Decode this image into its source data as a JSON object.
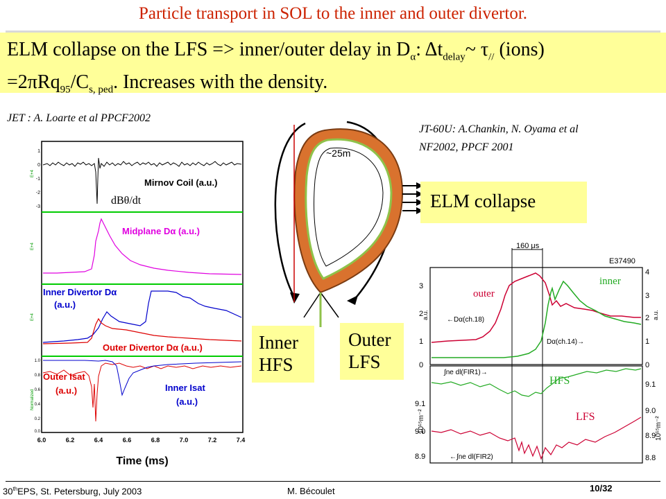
{
  "slide": {
    "title": "Particle transport in SOL to the inner and outer divertor.",
    "headline": {
      "line1_a": "ELM collapse on the LFS => inner/outer  delay in D",
      "line1_b": "α",
      "line1_c": ": Δt",
      "line1_d": "delay",
      "line1_e": "~  τ",
      "line1_f": "//",
      "line1_g": " (ions)",
      "line2_a": "=2πRq",
      "line2_b": "95",
      "line2_c": "/C",
      "line2_d": "s, ped",
      "line2_e": ". Increases with the density."
    }
  },
  "left_panel": {
    "citation": "JET : A. Loarte et al PPCF2002",
    "traces": {
      "mirnov": "Mirnov Coil (a.u.)",
      "dbdt": "dBθ/dt",
      "midplane": "Midplane Dα (a.u.)",
      "inner_div_1": "Inner Divertor Dα",
      "inner_div_2": "(a.u.)",
      "outer_div": "Outer Divertor Dα (a.u.)",
      "outer_isat_1": "Outer Isat",
      "outer_isat_2": "(a.u.)",
      "inner_isat_1": "Inner Isat",
      "inner_isat_2": "(a.u.)"
    },
    "y_axis_small": [
      "E+4",
      "E+4",
      "E+4",
      "Normalized"
    ],
    "mirnov_ticks": [
      "1",
      "0",
      "-1",
      "-2",
      "-3"
    ],
    "isat_ticks": [
      "1.0",
      "0.8",
      "0.6",
      "0.4",
      "0.2",
      "0.0"
    ],
    "x_ticks": [
      "6.0",
      "6.2",
      "6.4",
      "6.6",
      "6.8",
      "7.0",
      "7.2",
      "7.4"
    ],
    "x_label": "Time (ms)"
  },
  "diagram": {
    "label": "~25m"
  },
  "boxes": {
    "elm_collapse": "ELM collapse",
    "inner_hfs_1": "Inner",
    "inner_hfs_2": "HFS",
    "outer_lfs_1": "Outer",
    "outer_lfs_2": "LFS"
  },
  "right_panel": {
    "citation_1": "JT-60U: A.Chankin, N. Oyama et al",
    "citation_2": "NF2002, PPCF 2001",
    "shot": "E37490",
    "time_window": "160 μs",
    "label_outer": "outer",
    "label_inner": "inner",
    "label_hfs": "HFS",
    "label_lfs": "LFS",
    "label_dalpha18": "←Dα(ch.18)",
    "label_dalpha14": "Dα(ch.14)→",
    "label_fir1": "∫ne dl(FIR1)→",
    "label_fir2": "←∫ne dl(FIR2)",
    "top_ticks_left": [
      "3",
      "2",
      "1",
      "0"
    ],
    "top_ticks_right": [
      "4",
      "3",
      "2",
      "1",
      "0"
    ],
    "top_unit": "a.u.",
    "bot_ticks_left": [
      "9.1",
      "9.0",
      "8.9"
    ],
    "bot_ticks_right": [
      "9.1",
      "9.0",
      "8.9",
      "8.8"
    ],
    "bot_unit": "10¹⁵m⁻²"
  },
  "footer": {
    "conf_a": "30",
    "conf_b": "th",
    "conf_c": "EPS, St. Petersburg, July 2003",
    "author": "M. Bécoulet",
    "page": "10/32"
  }
}
